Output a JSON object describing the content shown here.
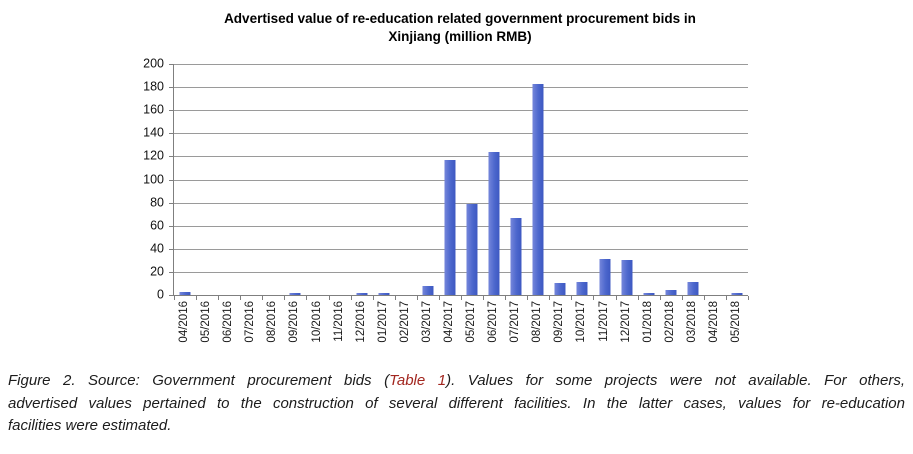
{
  "chart": {
    "title_lines": [
      "Advertised value of re-education related government procurement bids in",
      "Xinjiang (million RMB)"
    ]
  },
  "chart_data": {
    "type": "bar",
    "title": "Advertised value of re-education related government procurement bids in Xinjiang (million RMB)",
    "categories": [
      "04/2016",
      "05/2016",
      "06/2016",
      "07/2016",
      "08/2016",
      "09/2016",
      "10/2016",
      "11/2016",
      "12/2016",
      "01/2017",
      "02/2017",
      "03/2017",
      "04/2017",
      "05/2017",
      "06/2017",
      "07/2017",
      "08/2017",
      "09/2017",
      "10/2017",
      "11/2017",
      "12/2017",
      "01/2018",
      "02/2018",
      "03/2018",
      "04/2018",
      "05/2018"
    ],
    "values": [
      3,
      0,
      0,
      0,
      0,
      1.5,
      0,
      0,
      1.5,
      1.5,
      0,
      8,
      117,
      79,
      124,
      67,
      183,
      10,
      11,
      31,
      30,
      1.5,
      4.5,
      11,
      0,
      1.5
    ],
    "xlabel": "",
    "ylabel": "",
    "ylim": [
      0,
      200
    ],
    "ytick_step": 20,
    "grid": true,
    "legend": false,
    "bar_gradient": [
      "#7586da",
      "#4c67cd",
      "#3d58c1"
    ],
    "grid_color": "#9a9a9a",
    "axis_color": "#7f7f7f"
  },
  "caption": {
    "line1_before_link": "Figure 2. Source: Government procurement bids (",
    "link_text": "Table 1",
    "line1_after_link": "). Values for some projects were not available. For others,",
    "line2": "advertised values pertained to the construction of several different facilities. In the latter cases, values for re-education",
    "line3": "facilities were estimated.",
    "link_color": "#a2261f"
  }
}
